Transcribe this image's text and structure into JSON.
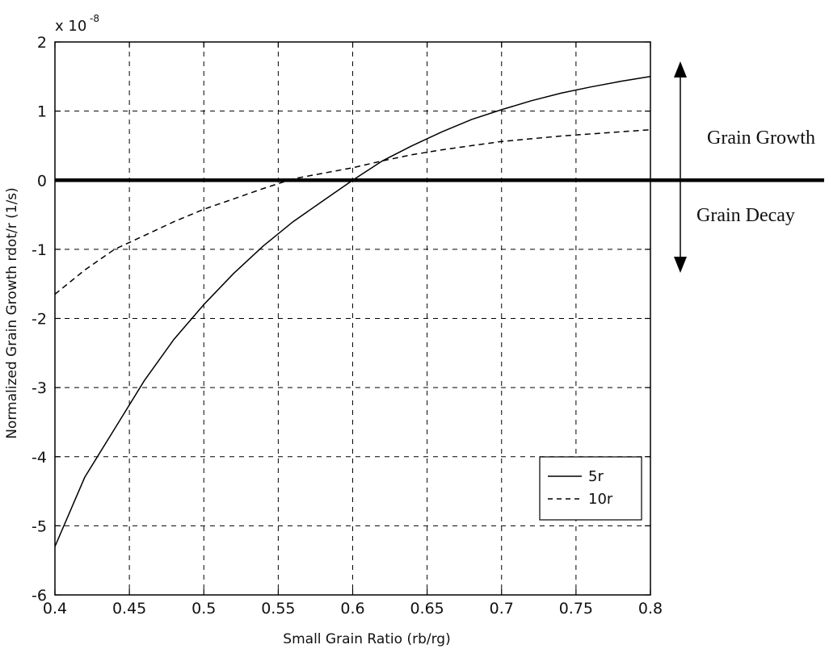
{
  "chart_data": {
    "type": "line",
    "xlabel": "Small Grain Ratio (rb/rg)",
    "ylabel": "Normalized Grain Growth rdot/r  (1/s)",
    "y_multiplier": {
      "base": "x 10",
      "exponent": "-8"
    },
    "xlim": [
      0.4,
      0.8
    ],
    "ylim": [
      -6,
      2
    ],
    "x_ticks": [
      0.4,
      0.45,
      0.5,
      0.55,
      0.6,
      0.65,
      0.7,
      0.75,
      0.8
    ],
    "y_ticks": [
      -6,
      -5,
      -4,
      -3,
      -2,
      -1,
      0,
      1,
      2
    ],
    "x_tick_labels": [
      "0.4",
      "0.45",
      "0.5",
      "0.55",
      "0.6",
      "0.65",
      "0.7",
      "0.75",
      "0.8"
    ],
    "y_tick_labels": [
      "-6",
      "-5",
      "-4",
      "-3",
      "-2",
      "-1",
      "0",
      "1",
      "2"
    ],
    "grid": true,
    "legend_position": "lower-right",
    "series": [
      {
        "name": "5r",
        "style": "solid",
        "x": [
          0.4,
          0.42,
          0.44,
          0.46,
          0.48,
          0.5,
          0.52,
          0.54,
          0.56,
          0.58,
          0.6,
          0.62,
          0.64,
          0.66,
          0.68,
          0.7,
          0.72,
          0.74,
          0.76,
          0.78,
          0.8
        ],
        "y": [
          -5.3,
          -4.3,
          -3.6,
          -2.9,
          -2.3,
          -1.8,
          -1.35,
          -0.95,
          -0.6,
          -0.3,
          0.0,
          0.28,
          0.5,
          0.7,
          0.88,
          1.02,
          1.15,
          1.26,
          1.35,
          1.43,
          1.5
        ]
      },
      {
        "name": "10r",
        "style": "dashed",
        "x": [
          0.4,
          0.42,
          0.44,
          0.46,
          0.48,
          0.5,
          0.52,
          0.54,
          0.56,
          0.58,
          0.6,
          0.62,
          0.64,
          0.66,
          0.68,
          0.7,
          0.72,
          0.74,
          0.76,
          0.78,
          0.8
        ],
        "y": [
          -1.65,
          -1.3,
          -1.0,
          -0.8,
          -0.6,
          -0.42,
          -0.27,
          -0.12,
          0.02,
          0.1,
          0.18,
          0.28,
          0.37,
          0.44,
          0.5,
          0.56,
          0.6,
          0.64,
          0.67,
          0.7,
          0.73
        ]
      }
    ],
    "reference_line": {
      "y": 0
    },
    "annotations": {
      "growth": "Grain Growth",
      "decay": "Grain Decay"
    }
  }
}
